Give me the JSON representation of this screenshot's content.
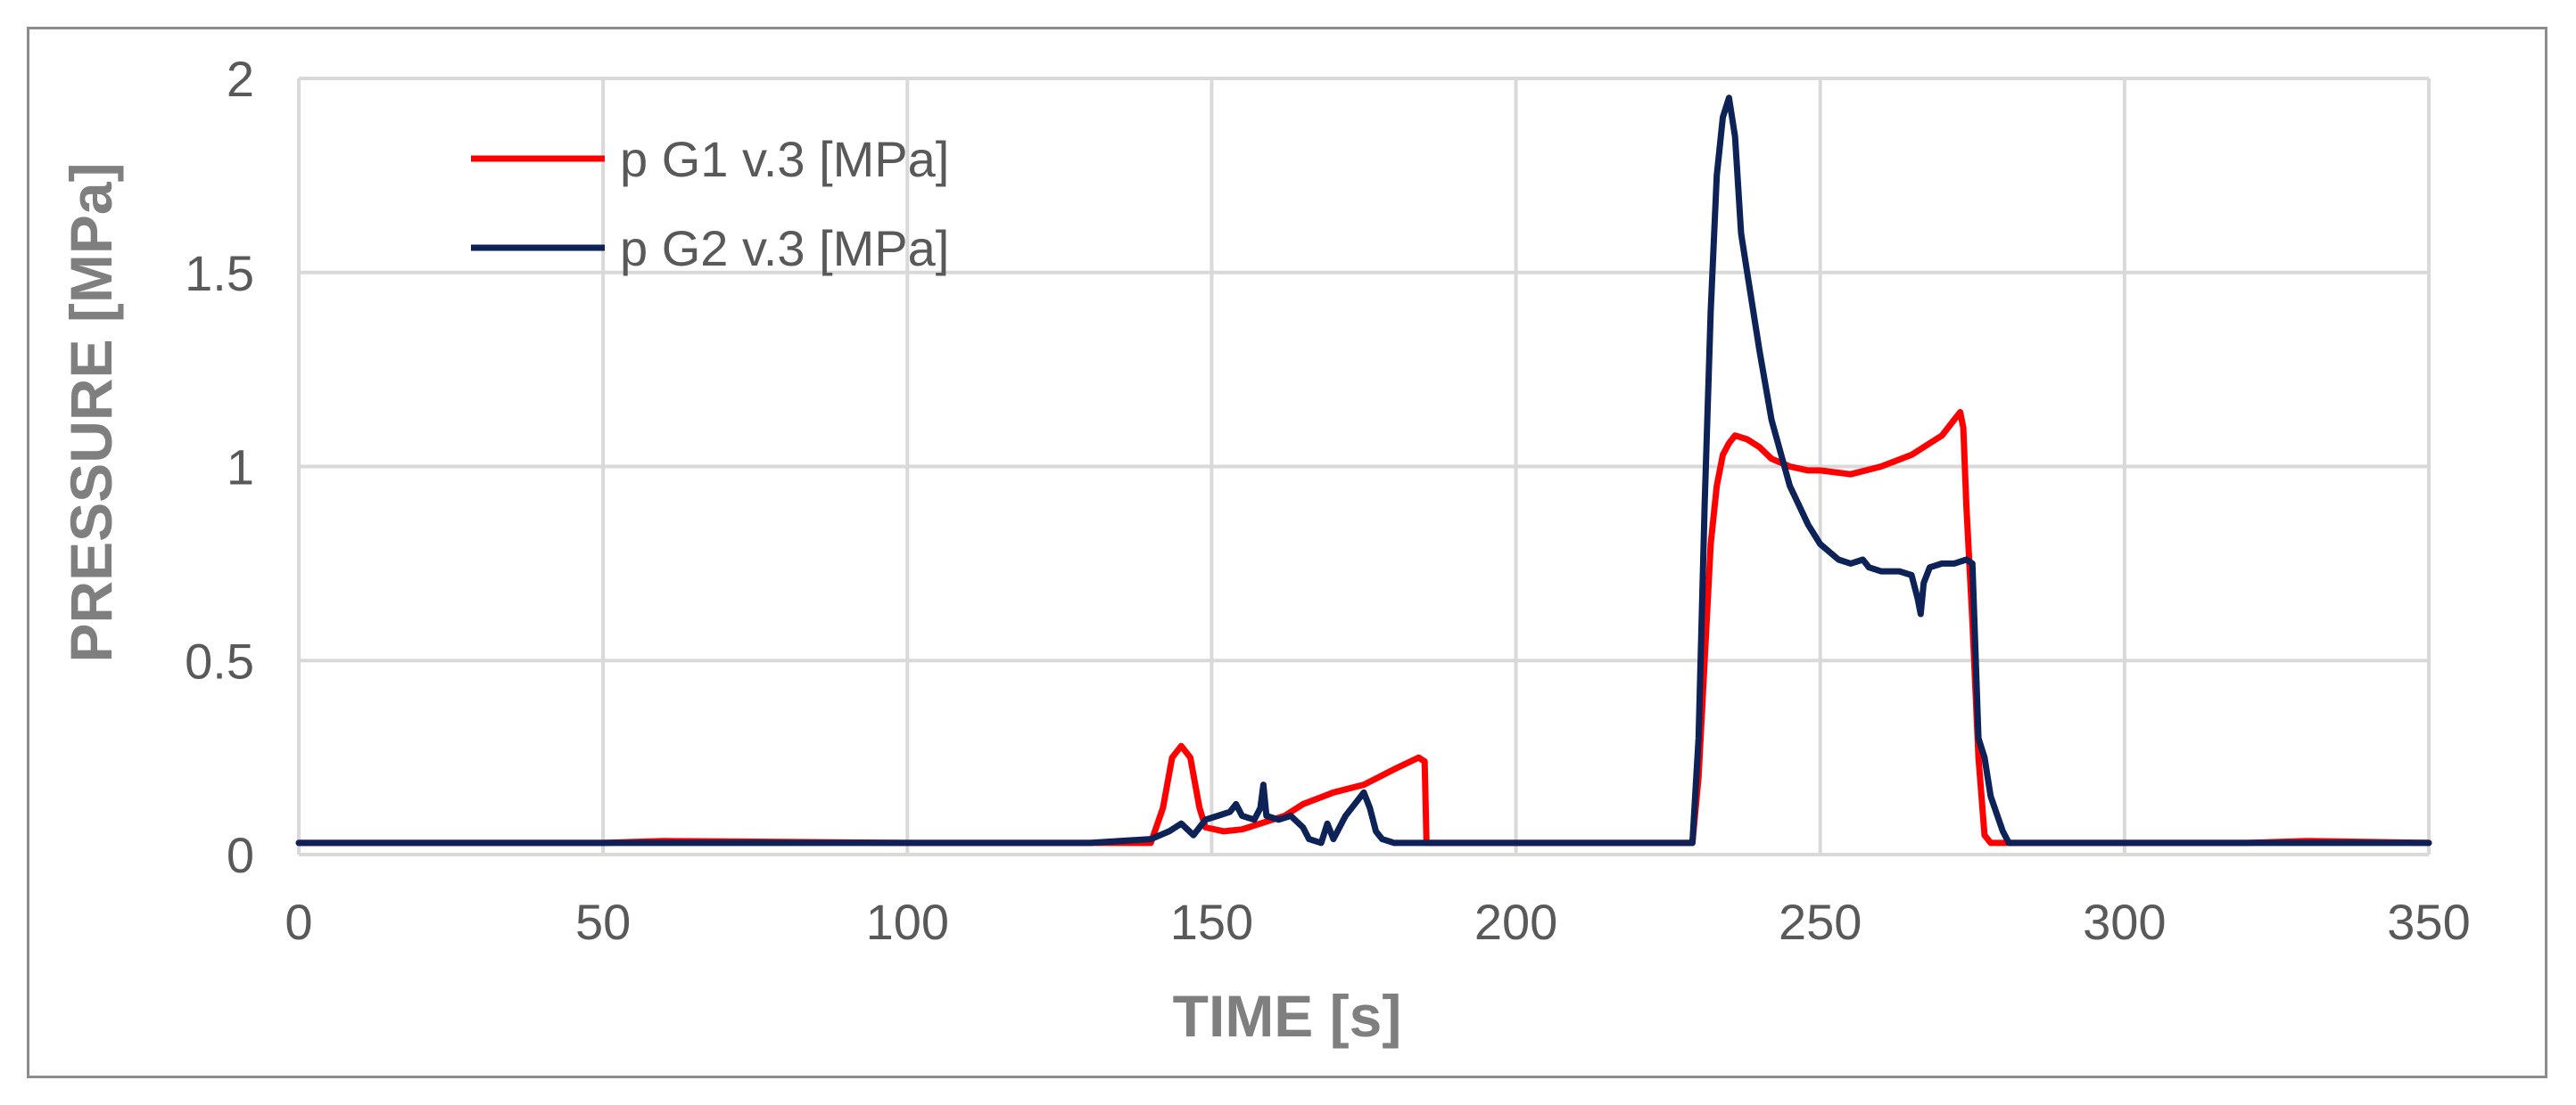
{
  "chart_data": {
    "type": "line",
    "title": "",
    "xlabel": "TIME [s]",
    "ylabel": "PRESSURE [MPa]",
    "xlim": [
      0,
      350
    ],
    "ylim": [
      0,
      2
    ],
    "xticks": [
      0,
      50,
      100,
      150,
      200,
      250,
      300,
      350
    ],
    "yticks": [
      0,
      0.5,
      1,
      1.5,
      2
    ],
    "ytick_labels": [
      "0",
      "0.5",
      "1",
      "1.5",
      "2"
    ],
    "grid": true,
    "legend_position": "top-left",
    "series": [
      {
        "name": "p G1 v.3 [MPa]",
        "color": "#ff0000",
        "points": [
          [
            0,
            0.03
          ],
          [
            50,
            0.03
          ],
          [
            60,
            0.035
          ],
          [
            100,
            0.03
          ],
          [
            130,
            0.03
          ],
          [
            140,
            0.03
          ],
          [
            142,
            0.12
          ],
          [
            143.5,
            0.25
          ],
          [
            145,
            0.28
          ],
          [
            146.5,
            0.25
          ],
          [
            148,
            0.12
          ],
          [
            149,
            0.07
          ],
          [
            152,
            0.06
          ],
          [
            155,
            0.065
          ],
          [
            158,
            0.08
          ],
          [
            160,
            0.09
          ],
          [
            162,
            0.1
          ],
          [
            165,
            0.13
          ],
          [
            170,
            0.16
          ],
          [
            175,
            0.18
          ],
          [
            180,
            0.22
          ],
          [
            184,
            0.25
          ],
          [
            185,
            0.24
          ],
          [
            185.3,
            0.03
          ],
          [
            190,
            0.03
          ],
          [
            200,
            0.03
          ],
          [
            210,
            0.03
          ],
          [
            220,
            0.03
          ],
          [
            229,
            0.03
          ],
          [
            230,
            0.2
          ],
          [
            231,
            0.5
          ],
          [
            232,
            0.8
          ],
          [
            233,
            0.95
          ],
          [
            234,
            1.03
          ],
          [
            235,
            1.06
          ],
          [
            236,
            1.08
          ],
          [
            238,
            1.07
          ],
          [
            240,
            1.05
          ],
          [
            242,
            1.02
          ],
          [
            245,
            1.0
          ],
          [
            248,
            0.99
          ],
          [
            250,
            0.99
          ],
          [
            255,
            0.98
          ],
          [
            260,
            1.0
          ],
          [
            265,
            1.03
          ],
          [
            270,
            1.08
          ],
          [
            272,
            1.12
          ],
          [
            273,
            1.14
          ],
          [
            273.5,
            1.1
          ],
          [
            274,
            0.9
          ],
          [
            275,
            0.6
          ],
          [
            276,
            0.25
          ],
          [
            277,
            0.05
          ],
          [
            278,
            0.03
          ],
          [
            290,
            0.03
          ],
          [
            300,
            0.03
          ],
          [
            320,
            0.03
          ],
          [
            330,
            0.035
          ],
          [
            350,
            0.03
          ]
        ]
      },
      {
        "name": "p G2 v.3 [MPa]",
        "color": "#0d2257",
        "points": [
          [
            0,
            0.03
          ],
          [
            50,
            0.03
          ],
          [
            100,
            0.03
          ],
          [
            130,
            0.03
          ],
          [
            140,
            0.04
          ],
          [
            143,
            0.06
          ],
          [
            145,
            0.08
          ],
          [
            147,
            0.05
          ],
          [
            149,
            0.09
          ],
          [
            151,
            0.1
          ],
          [
            153,
            0.11
          ],
          [
            154,
            0.13
          ],
          [
            155,
            0.1
          ],
          [
            157,
            0.09
          ],
          [
            158,
            0.12
          ],
          [
            158.5,
            0.18
          ],
          [
            159,
            0.1
          ],
          [
            161,
            0.09
          ],
          [
            163,
            0.1
          ],
          [
            165,
            0.07
          ],
          [
            166,
            0.04
          ],
          [
            168,
            0.03
          ],
          [
            169,
            0.08
          ],
          [
            170,
            0.04
          ],
          [
            172,
            0.1
          ],
          [
            174,
            0.14
          ],
          [
            175,
            0.16
          ],
          [
            176,
            0.12
          ],
          [
            177,
            0.06
          ],
          [
            178,
            0.04
          ],
          [
            180,
            0.03
          ],
          [
            200,
            0.03
          ],
          [
            220,
            0.03
          ],
          [
            229,
            0.03
          ],
          [
            230,
            0.3
          ],
          [
            231,
            0.9
          ],
          [
            232,
            1.4
          ],
          [
            233,
            1.75
          ],
          [
            234,
            1.9
          ],
          [
            235,
            1.95
          ],
          [
            236,
            1.85
          ],
          [
            237,
            1.6
          ],
          [
            238,
            1.5
          ],
          [
            240,
            1.3
          ],
          [
            242,
            1.12
          ],
          [
            245,
            0.95
          ],
          [
            248,
            0.85
          ],
          [
            250,
            0.8
          ],
          [
            253,
            0.76
          ],
          [
            255,
            0.75
          ],
          [
            257,
            0.76
          ],
          [
            258,
            0.74
          ],
          [
            260,
            0.73
          ],
          [
            263,
            0.73
          ],
          [
            265,
            0.72
          ],
          [
            266,
            0.66
          ],
          [
            266.5,
            0.62
          ],
          [
            267,
            0.7
          ],
          [
            268,
            0.74
          ],
          [
            270,
            0.75
          ],
          [
            272,
            0.75
          ],
          [
            274,
            0.76
          ],
          [
            275,
            0.75
          ],
          [
            276,
            0.3
          ],
          [
            277,
            0.25
          ],
          [
            278,
            0.15
          ],
          [
            280,
            0.06
          ],
          [
            281,
            0.03
          ],
          [
            290,
            0.03
          ],
          [
            300,
            0.03
          ],
          [
            350,
            0.03
          ]
        ]
      }
    ]
  }
}
